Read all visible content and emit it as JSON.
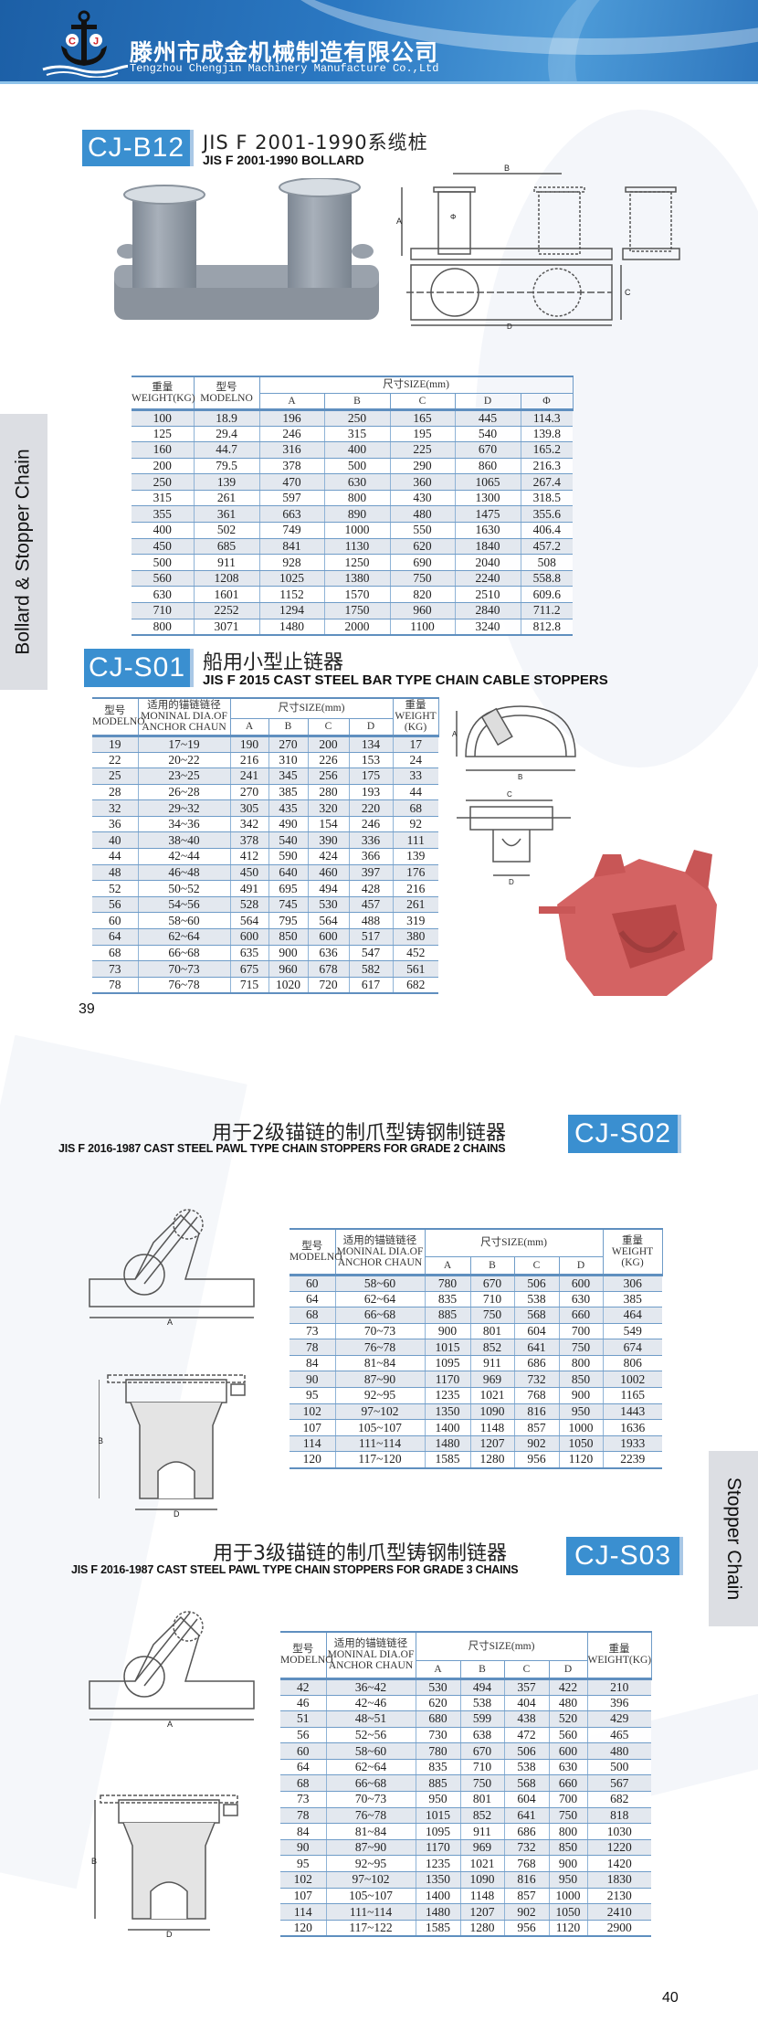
{
  "header": {
    "company_cn": "滕州市成金机械制造有限公司",
    "company_en": "Tengzhou Chengjin Machinery Manufacture Co.,Ltd",
    "logo_letters": [
      "C",
      "J"
    ],
    "brand_color": "#2b78c2"
  },
  "side_labels": {
    "left": "Bollard & Stopper Chain",
    "right": "Stopper Chain"
  },
  "page_numbers": {
    "left": "39",
    "right": "40"
  },
  "b12": {
    "badge": "CJ-B12",
    "title_cn": "JIS F 2001-1990系缆桩",
    "title_en": "JIS F 2001-1990 BOLLARD",
    "diagram_labels": {
      "a": "A",
      "b": "B",
      "c": "C",
      "d": "D",
      "phi": "Φ"
    },
    "head": {
      "weight_cn": "重量",
      "weight_en": "WEIGHT(KG)",
      "model_cn": "型号",
      "model_en": "MODELNO",
      "size": "尺寸SIZE(mm)",
      "cols": [
        "A",
        "B",
        "C",
        "D",
        "Φ"
      ]
    },
    "rows": [
      [
        "100",
        "18.9",
        "196",
        "250",
        "165",
        "445",
        "114.3"
      ],
      [
        "125",
        "29.4",
        "246",
        "315",
        "195",
        "540",
        "139.8"
      ],
      [
        "160",
        "44.7",
        "316",
        "400",
        "225",
        "670",
        "165.2"
      ],
      [
        "200",
        "79.5",
        "378",
        "500",
        "290",
        "860",
        "216.3"
      ],
      [
        "250",
        "139",
        "470",
        "630",
        "360",
        "1065",
        "267.4"
      ],
      [
        "315",
        "261",
        "597",
        "800",
        "430",
        "1300",
        "318.5"
      ],
      [
        "355",
        "361",
        "663",
        "890",
        "480",
        "1475",
        "355.6"
      ],
      [
        "400",
        "502",
        "749",
        "1000",
        "550",
        "1630",
        "406.4"
      ],
      [
        "450",
        "685",
        "841",
        "1130",
        "620",
        "1840",
        "457.2"
      ],
      [
        "500",
        "911",
        "928",
        "1250",
        "690",
        "2040",
        "508"
      ],
      [
        "560",
        "1208",
        "1025",
        "1380",
        "750",
        "2240",
        "558.8"
      ],
      [
        "630",
        "1601",
        "1152",
        "1570",
        "820",
        "2510",
        "609.6"
      ],
      [
        "710",
        "2252",
        "1294",
        "1750",
        "960",
        "2840",
        "711.2"
      ],
      [
        "800",
        "3071",
        "1480",
        "2000",
        "1100",
        "3240",
        "812.8"
      ]
    ]
  },
  "s01": {
    "badge": "CJ-S01",
    "title_cn": "船用小型止链器",
    "title_en": "JIS F 2015 CAST STEEL BAR TYPE CHAIN CABLE STOPPERS",
    "diagram_labels": {
      "a": "A",
      "b": "B",
      "c": "C",
      "d": "D"
    },
    "head": {
      "model_cn": "型号",
      "model_en": "MODELNO",
      "dia_cn": "适用的锚链链径",
      "dia_en1": "MONINAL DIA.OF",
      "dia_en2": "ANCHOR CHAUN",
      "size": "尺寸SIZE(mm)",
      "cols": [
        "A",
        "B",
        "C",
        "D"
      ],
      "weight_cn": "重量",
      "weight_en": "WEIGHT",
      "weight_unit": "(KG)"
    },
    "rows": [
      [
        "19",
        "17~19",
        "190",
        "270",
        "200",
        "134",
        "17"
      ],
      [
        "22",
        "20~22",
        "216",
        "310",
        "226",
        "153",
        "24"
      ],
      [
        "25",
        "23~25",
        "241",
        "345",
        "256",
        "175",
        "33"
      ],
      [
        "28",
        "26~28",
        "270",
        "385",
        "280",
        "193",
        "44"
      ],
      [
        "32",
        "29~32",
        "305",
        "435",
        "320",
        "220",
        "68"
      ],
      [
        "36",
        "34~36",
        "342",
        "490",
        "154",
        "246",
        "92"
      ],
      [
        "40",
        "38~40",
        "378",
        "540",
        "390",
        "336",
        "111"
      ],
      [
        "44",
        "42~44",
        "412",
        "590",
        "424",
        "366",
        "139"
      ],
      [
        "48",
        "46~48",
        "450",
        "640",
        "460",
        "397",
        "176"
      ],
      [
        "52",
        "50~52",
        "491",
        "695",
        "494",
        "428",
        "216"
      ],
      [
        "56",
        "54~56",
        "528",
        "745",
        "530",
        "457",
        "261"
      ],
      [
        "60",
        "58~60",
        "564",
        "795",
        "564",
        "488",
        "319"
      ],
      [
        "64",
        "62~64",
        "600",
        "850",
        "600",
        "517",
        "380"
      ],
      [
        "68",
        "66~68",
        "635",
        "900",
        "636",
        "547",
        "452"
      ],
      [
        "73",
        "70~73",
        "675",
        "960",
        "678",
        "582",
        "561"
      ],
      [
        "78",
        "76~78",
        "715",
        "1020",
        "720",
        "617",
        "682"
      ]
    ]
  },
  "s02": {
    "badge": "CJ-S02",
    "title_cn": "用于2级锚链的制爪型铸钢制链器",
    "title_en": "JIS F 2016-1987 CAST STEEL PAWL TYPE CHAIN STOPPERS FOR GRADE 2 CHAINS",
    "diagram_labels": {
      "a": "A",
      "b": "B",
      "d": "D"
    },
    "head": {
      "model_cn": "型号",
      "model_en": "MODELNO",
      "dia_cn": "适用的锚链链径",
      "dia_en1": "MONINAL DIA.OF",
      "dia_en2": "ANCHOR CHAUN",
      "size": "尺寸SIZE(mm)",
      "cols": [
        "A",
        "B",
        "C",
        "D"
      ],
      "weight_cn": "重量",
      "weight_en": "WEIGHT",
      "weight_unit": "(KG)"
    },
    "rows": [
      [
        "60",
        "58~60",
        "780",
        "670",
        "506",
        "600",
        "306"
      ],
      [
        "64",
        "62~64",
        "835",
        "710",
        "538",
        "630",
        "385"
      ],
      [
        "68",
        "66~68",
        "885",
        "750",
        "568",
        "660",
        "464"
      ],
      [
        "73",
        "70~73",
        "900",
        "801",
        "604",
        "700",
        "549"
      ],
      [
        "78",
        "76~78",
        "1015",
        "852",
        "641",
        "750",
        "674"
      ],
      [
        "84",
        "81~84",
        "1095",
        "911",
        "686",
        "800",
        "806"
      ],
      [
        "90",
        "87~90",
        "1170",
        "969",
        "732",
        "850",
        "1002"
      ],
      [
        "95",
        "92~95",
        "1235",
        "1021",
        "768",
        "900",
        "1165"
      ],
      [
        "102",
        "97~102",
        "1350",
        "1090",
        "816",
        "950",
        "1443"
      ],
      [
        "107",
        "105~107",
        "1400",
        "1148",
        "857",
        "1000",
        "1636"
      ],
      [
        "114",
        "111~114",
        "1480",
        "1207",
        "902",
        "1050",
        "1933"
      ],
      [
        "120",
        "117~120",
        "1585",
        "1280",
        "956",
        "1120",
        "2239"
      ]
    ]
  },
  "s03": {
    "badge": "CJ-S03",
    "title_cn": "用于3级锚链的制爪型铸钢制链器",
    "title_en": "JIS F 2016-1987 CAST STEEL PAWL TYPE CHAIN STOPPERS FOR GRADE 3 CHAINS",
    "diagram_labels": {
      "a": "A",
      "b": "B",
      "d": "D"
    },
    "head": {
      "model_cn": "型号",
      "model_en": "MODELNO",
      "dia_cn": "适用的锚链链径",
      "dia_en1": "MONINAL DIA.OF",
      "dia_en2": "ANCHOR CHAUN",
      "size": "尺寸SIZE(mm)",
      "cols": [
        "A",
        "B",
        "C",
        "D"
      ],
      "weight_cn": "重量",
      "weight_en": "WEIGHT(KG)"
    },
    "rows": [
      [
        "42",
        "36~42",
        "530",
        "494",
        "357",
        "422",
        "210"
      ],
      [
        "46",
        "42~46",
        "620",
        "538",
        "404",
        "480",
        "396"
      ],
      [
        "51",
        "48~51",
        "680",
        "599",
        "438",
        "520",
        "429"
      ],
      [
        "56",
        "52~56",
        "730",
        "638",
        "472",
        "560",
        "465"
      ],
      [
        "60",
        "58~60",
        "780",
        "670",
        "506",
        "600",
        "480"
      ],
      [
        "64",
        "62~64",
        "835",
        "710",
        "538",
        "630",
        "500"
      ],
      [
        "68",
        "66~68",
        "885",
        "750",
        "568",
        "660",
        "567"
      ],
      [
        "73",
        "70~73",
        "950",
        "801",
        "604",
        "700",
        "682"
      ],
      [
        "78",
        "76~78",
        "1015",
        "852",
        "641",
        "750",
        "818"
      ],
      [
        "84",
        "81~84",
        "1095",
        "911",
        "686",
        "800",
        "1030"
      ],
      [
        "90",
        "87~90",
        "1170",
        "969",
        "732",
        "850",
        "1220"
      ],
      [
        "95",
        "92~95",
        "1235",
        "1021",
        "768",
        "900",
        "1420"
      ],
      [
        "102",
        "97~102",
        "1350",
        "1090",
        "816",
        "950",
        "1830"
      ],
      [
        "107",
        "105~107",
        "1400",
        "1148",
        "857",
        "1000",
        "2130"
      ],
      [
        "114",
        "111~114",
        "1480",
        "1207",
        "902",
        "1050",
        "2410"
      ],
      [
        "120",
        "117~122",
        "1585",
        "1280",
        "956",
        "1120",
        "2900"
      ]
    ]
  }
}
